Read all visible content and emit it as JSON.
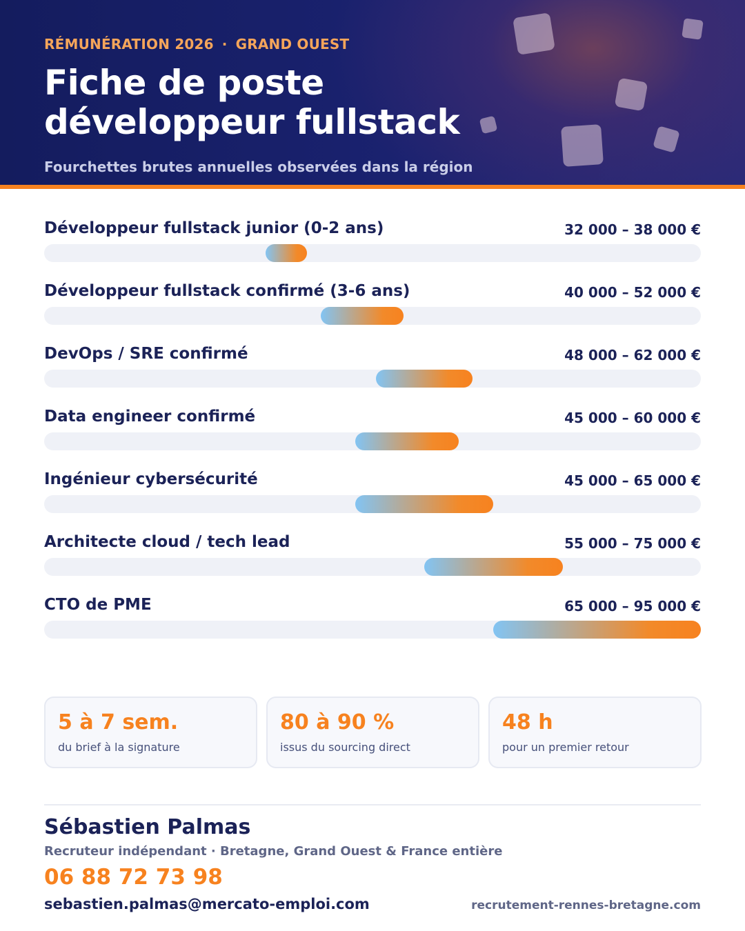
{
  "header": {
    "kicker_left": "RÉMUNÉRATION 2026",
    "kicker_sep": "·",
    "kicker_right": "GRAND OUEST",
    "title_line1": "Fiche de poste",
    "title_line2": "développeur fullstack",
    "subtitle": "Fourchettes brutes annuelles observées dans la région"
  },
  "chart_data": {
    "type": "bar",
    "orientation": "horizontal-range",
    "xlim": [
      0,
      95000
    ],
    "unit": "€",
    "grid": false,
    "categories": [
      "Développeur fullstack junior (0-2 ans)",
      "Développeur fullstack confirmé (3-6 ans)",
      "DevOps / SRE confirmé",
      "Data engineer confirmé",
      "Ingénieur cybersécurité",
      "Architecte cloud / tech lead",
      "CTO de PME"
    ],
    "ranges": [
      [
        32000,
        38000
      ],
      [
        40000,
        52000
      ],
      [
        48000,
        62000
      ],
      [
        45000,
        60000
      ],
      [
        45000,
        65000
      ],
      [
        55000,
        75000
      ],
      [
        65000,
        95000
      ]
    ],
    "range_labels": [
      "32 000 – 38 000 €",
      "40 000 – 52 000 €",
      "48 000 – 62 000 €",
      "45 000 – 60 000 €",
      "45 000 – 65 000 €",
      "55 000 – 75 000 €",
      "65 000 – 95 000 €"
    ]
  },
  "stats": [
    {
      "value": "5 à 7 sem.",
      "label": "du brief à la signature"
    },
    {
      "value": "80 à 90 %",
      "label": "issus du sourcing direct"
    },
    {
      "value": "48 h",
      "label": "pour un premier retour"
    }
  ],
  "contact": {
    "name": "Sébastien Palmas",
    "tagline": "Recruteur indépendant · Bretagne, Grand Ouest & France entière",
    "phone": "06 88 72 73 98",
    "email": "sebastien.palmas@mercato-emploi.com",
    "website": "recrutement-rennes-bretagne.com"
  },
  "colors": {
    "navy": "#141c5e",
    "accent": "#f7821f",
    "bar_start": "#82c4f3",
    "track": "#eff1f7"
  }
}
